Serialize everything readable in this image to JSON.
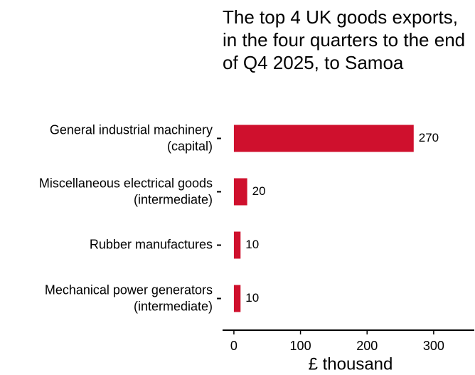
{
  "chart_data": {
    "type": "bar",
    "orientation": "horizontal",
    "title": "The top 4 UK goods exports, in the four quarters to the end of Q4 2025, to Samoa",
    "categories": [
      "General industrial machinery (capital)",
      "Miscellaneous electrical goods (intermediate)",
      "Rubber manufactures",
      "Mechanical power generators (intermediate)"
    ],
    "values": [
      270,
      20,
      10,
      10
    ],
    "color": "#cf102d",
    "x_label": "£ thousand",
    "xlim": [
      -17,
      361
    ],
    "xticks": [
      0,
      100,
      200,
      300
    ],
    "grid": false
  }
}
